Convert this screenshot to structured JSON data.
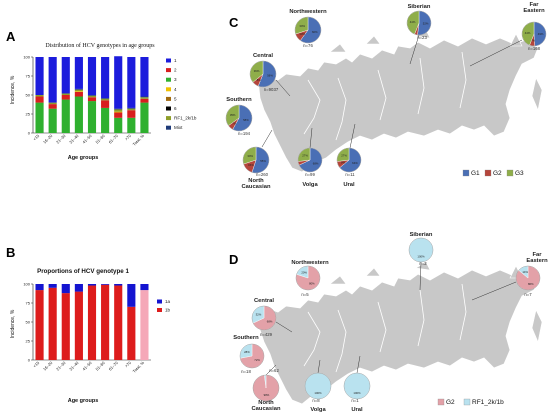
{
  "panels": {
    "a": "A",
    "b": "B",
    "c": "C",
    "d": "D"
  },
  "chart_data": [
    {
      "type": "bar",
      "stacked": true,
      "title": "Distribution of HCV genotypes in age groups",
      "xlabel": "Age groups",
      "ylabel": "Incidence, %",
      "ylim": [
        0,
        100
      ],
      "yticks": [
        0,
        25,
        50,
        75,
        100
      ],
      "categories": [
        "<15",
        "16–20",
        "21–30",
        "31–40",
        "41–50",
        "51–60",
        "61–70",
        ">70",
        "Total, %"
      ],
      "series": [
        {
          "name": "Mixt",
          "color": "#1e3a78",
          "values": [
            0,
            0,
            0,
            1,
            1,
            1,
            1,
            1,
            1
          ]
        },
        {
          "name": "RF1_2k/1b",
          "color": "#8e9e2a",
          "values": [
            2,
            2,
            2,
            2,
            2,
            2,
            3,
            2,
            2
          ]
        },
        {
          "name": "6",
          "color": "#000000",
          "values": [
            0,
            0,
            0,
            0,
            0,
            0,
            0,
            0,
            0
          ]
        },
        {
          "name": "5",
          "color": "#a06a10",
          "values": [
            0,
            0,
            0,
            0,
            0,
            0,
            0,
            0,
            0
          ]
        },
        {
          "name": "4",
          "color": "#f0c000",
          "values": [
            0,
            0,
            0,
            1,
            0,
            0,
            1,
            0,
            0
          ]
        },
        {
          "name": "3",
          "color": "#2fb02f",
          "values": [
            40,
            32,
            44,
            48,
            42,
            33,
            20,
            20,
            40
          ]
        },
        {
          "name": "2",
          "color": "#d81e1e",
          "values": [
            8,
            6,
            6,
            6,
            5,
            10,
            7,
            10,
            5
          ]
        },
        {
          "name": "1",
          "color": "#1c1cdc",
          "values": [
            50,
            60,
            48,
            42,
            50,
            54,
            69,
            67,
            52
          ]
        }
      ],
      "legend": [
        "1",
        "2",
        "3",
        "4",
        "5",
        "6",
        "RF1_2k/1b",
        "Mixt"
      ],
      "legend_position": "right"
    },
    {
      "type": "bar",
      "stacked": true,
      "title": "Proportions of HCV genotype 1",
      "xlabel": "Age groups",
      "ylabel": "Incidence, %",
      "ylim": [
        0,
        100
      ],
      "yticks": [
        0,
        25,
        50,
        75,
        100
      ],
      "categories": [
        "<15",
        "16–20",
        "21–30",
        "31–40",
        "41–50",
        "51–60",
        "61–70",
        ">70",
        "Total, %"
      ],
      "series": [
        {
          "name": "1b",
          "color": "#dd1c1c",
          "values": [
            92,
            95,
            88,
            90,
            98,
            99,
            98,
            70,
            92
          ],
          "total_color": "#f5a8b8"
        },
        {
          "name": "1a",
          "color": "#1414d0",
          "values": [
            8,
            5,
            12,
            10,
            2,
            1,
            2,
            30,
            8
          ]
        }
      ],
      "legend": [
        "1a",
        "1b"
      ],
      "legend_position": "right"
    },
    {
      "type": "pie",
      "title": "",
      "legend": [
        "G1",
        "G2",
        "G3"
      ],
      "colors": {
        "G1": "#4a6fb5",
        "G2": "#b5453b",
        "G3": "#8fae4a"
      },
      "regions": [
        {
          "name": "Northwestern",
          "n": "n=76",
          "values": [
            60,
            10,
            30
          ]
        },
        {
          "name": "Siberian",
          "n": "n=23",
          "values": [
            52,
            4,
            44
          ]
        },
        {
          "name": "Far Eastern",
          "n": "n=168",
          "values": [
            49,
            7,
            44
          ]
        },
        {
          "name": "Central",
          "n": "n=9037",
          "values": [
            56,
            8,
            36
          ]
        },
        {
          "name": "Southern",
          "n": "n=194",
          "values": [
            58,
            7,
            35
          ]
        },
        {
          "name": "North Caucasian",
          "n": "n=260",
          "values": [
            55,
            15,
            30
          ]
        },
        {
          "name": "Volga",
          "n": "n=99",
          "values": [
            68,
            5,
            27
          ]
        },
        {
          "name": "Ural",
          "n": "n=11",
          "values": [
            64,
            9,
            27
          ]
        }
      ]
    },
    {
      "type": "pie",
      "title": "",
      "legend": [
        "G2",
        "RF1_2k/1b"
      ],
      "colors": {
        "G2": "#e3a1a8",
        "RF1_2k/1b": "#b9e2ef"
      },
      "regions": [
        {
          "name": "Northwestern",
          "n": "n=5",
          "values": [
            80,
            20
          ]
        },
        {
          "name": "Siberian",
          "n": "n=2",
          "values": [
            0,
            100
          ]
        },
        {
          "name": "Far Eastern",
          "n": "n=7",
          "values": [
            86,
            14
          ]
        },
        {
          "name": "Central",
          "n": "n=429",
          "values": [
            68,
            32
          ]
        },
        {
          "name": "Southern",
          "n": "n=18",
          "values": [
            72,
            28
          ]
        },
        {
          "name": "North Caucasian",
          "n": "n=62",
          "values": [
            98,
            2
          ]
        },
        {
          "name": "Volga",
          "n": "n=8",
          "values": [
            0,
            100
          ]
        },
        {
          "name": "Ural",
          "n": "n=1",
          "values": [
            0,
            100
          ]
        }
      ]
    }
  ]
}
